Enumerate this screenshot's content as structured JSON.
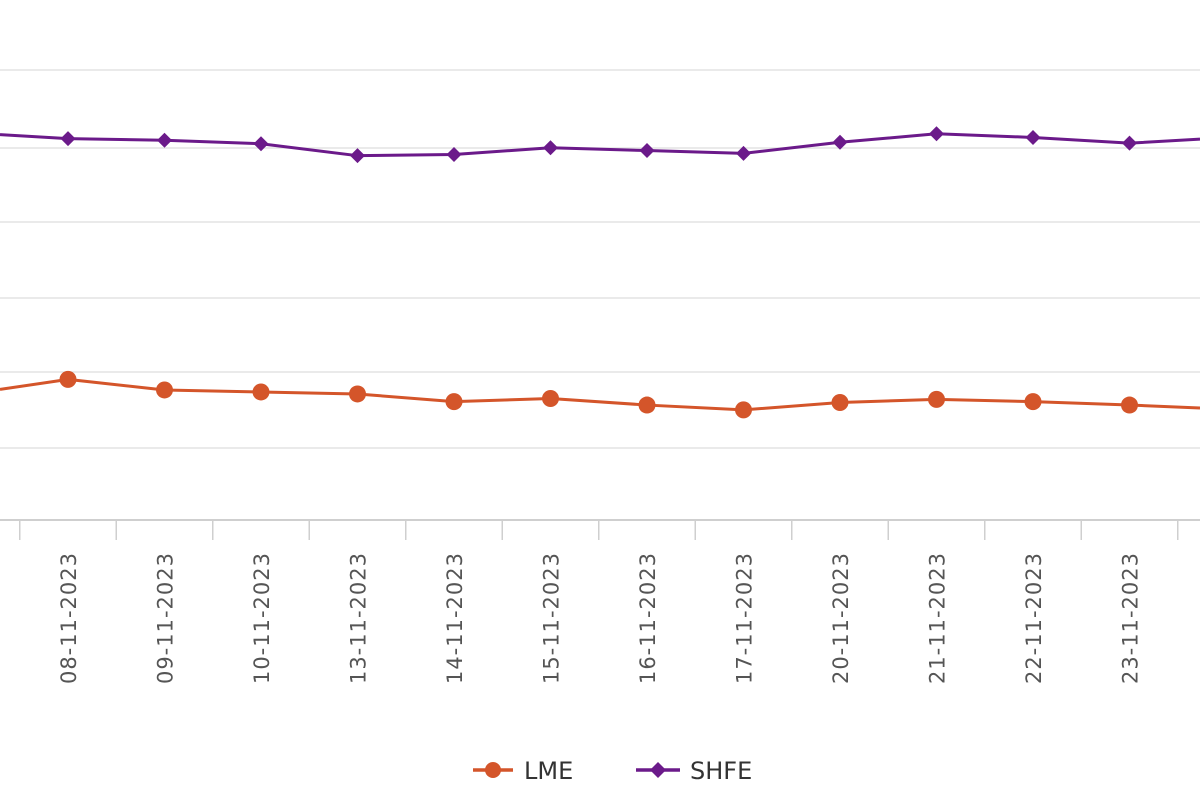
{
  "chart_data": {
    "type": "line",
    "x": [
      "08-11-2023",
      "09-11-2023",
      "10-11-2023",
      "13-11-2023",
      "14-11-2023",
      "15-11-2023",
      "16-11-2023",
      "17-11-2023",
      "20-11-2023",
      "21-11-2023",
      "22-11-2023",
      "23-11-2023"
    ],
    "series": [
      {
        "name": "LME",
        "color": "#d4552a",
        "marker": "circle",
        "values": [
          -2.6,
          -6.3,
          -7.0,
          -7.7,
          -10.4,
          -9.3,
          -11.6,
          -13.3,
          -10.7,
          -9.6,
          -10.4,
          -11.6
        ]
      },
      {
        "name": "SHFE",
        "color": "#6b1a8a",
        "marker": "diamond",
        "values": [
          81.9,
          81.3,
          80.1,
          75.9,
          76.3,
          78.7,
          77.7,
          76.7,
          80.6,
          83.6,
          82.3,
          80.3
        ]
      }
    ],
    "grid": true,
    "legend": "bottom-center"
  }
}
